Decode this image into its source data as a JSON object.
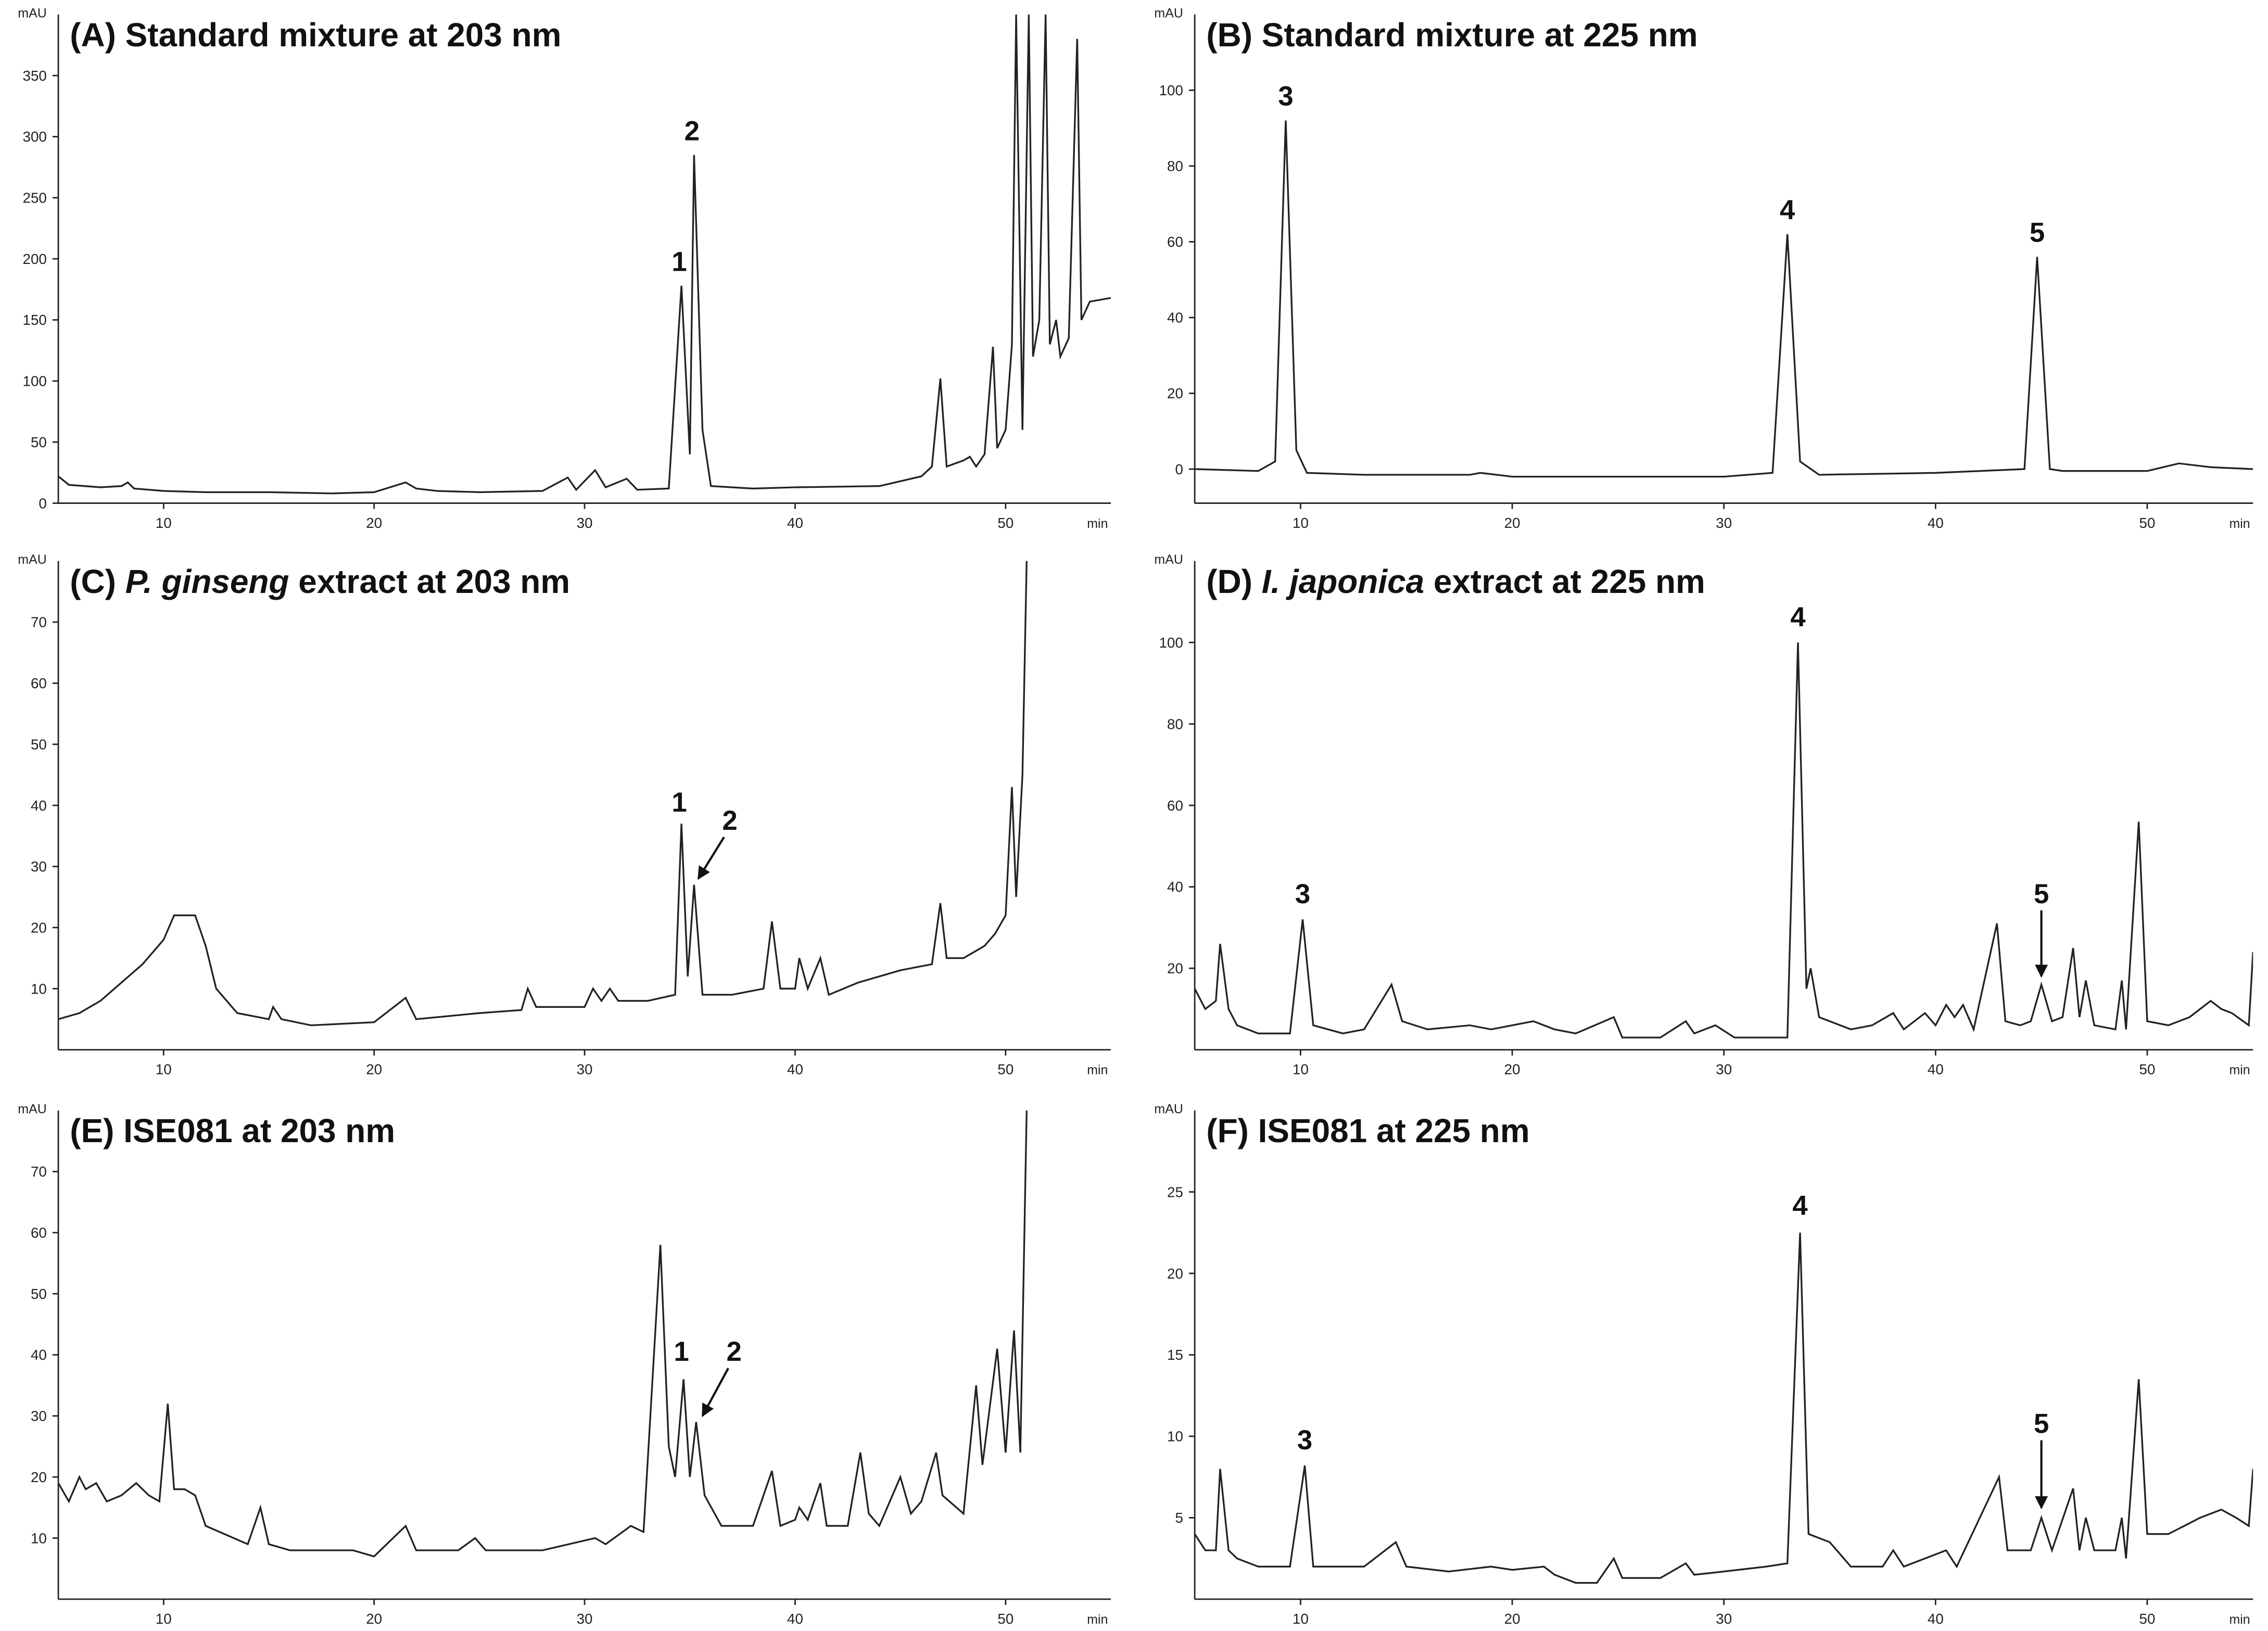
{
  "chart_data": [
    {
      "type": "line",
      "title": [
        {
          "text": "(A) Standard mixture at 203 nm"
        }
      ],
      "xlabel": "min",
      "ylabel": "mAU",
      "color": "#222222",
      "x": [
        5,
        5.5,
        7,
        8,
        8.3,
        8.6,
        10,
        12,
        15,
        18,
        20,
        21.5,
        22,
        23,
        25,
        28,
        29.2,
        29.6,
        30.5,
        31,
        32,
        32.5,
        34,
        34.6,
        35,
        35.2,
        35.6,
        36,
        38,
        40,
        44,
        45,
        46,
        46.5,
        46.9,
        47.2,
        48,
        48.3,
        48.6,
        49,
        49.4,
        49.6,
        50,
        50.3,
        50.5,
        50.8,
        51.1,
        51.3,
        51.6,
        51.9,
        52.1,
        52.4,
        52.6,
        53,
        53.4,
        53.6,
        54,
        55
      ],
      "values": [
        22,
        15,
        13,
        14,
        17,
        12,
        10,
        9,
        9,
        8,
        9,
        17,
        12,
        10,
        9,
        10,
        21,
        11,
        27,
        13,
        20,
        11,
        12,
        178,
        40,
        285,
        60,
        14,
        12,
        13,
        14,
        18,
        22,
        30,
        102,
        30,
        35,
        38,
        30,
        40,
        128,
        45,
        60,
        130,
        400,
        60,
        400,
        120,
        150,
        400,
        130,
        150,
        120,
        135,
        380,
        150,
        165,
        168
      ],
      "xlim": [
        5,
        55
      ],
      "ylim": [
        0,
        400
      ],
      "xticks": [
        10,
        20,
        30,
        40,
        50
      ],
      "yticks": [
        0,
        50,
        100,
        150,
        200,
        250,
        300,
        350
      ],
      "annotations": [
        {
          "text": "1",
          "x": 34.5,
          "y": 190
        },
        {
          "text": "2",
          "x": 35.1,
          "y": 297
        }
      ]
    },
    {
      "type": "line",
      "title": [
        {
          "text": "(B) Standard mixture at 225 nm"
        }
      ],
      "xlabel": "min",
      "ylabel": "mAU",
      "color": "#222222",
      "x": [
        5,
        8,
        8.8,
        9.3,
        9.8,
        10.3,
        13,
        18,
        18.5,
        20,
        25,
        30,
        32.3,
        33,
        33.6,
        34.5,
        40,
        44.2,
        44.8,
        45.4,
        46,
        50,
        51.5,
        53,
        55
      ],
      "values": [
        0,
        -0.5,
        2,
        92,
        5,
        -1,
        -1.5,
        -1.5,
        -1,
        -2,
        -2,
        -2,
        -1,
        62,
        2,
        -1.5,
        -1,
        0,
        56,
        0,
        -0.5,
        -0.5,
        1.5,
        0.5,
        0
      ],
      "xlim": [
        5,
        55
      ],
      "ylim": [
        -9,
        120
      ],
      "xticks": [
        10,
        20,
        30,
        40,
        50
      ],
      "yticks": [
        0,
        20,
        40,
        60,
        80,
        100
      ],
      "annotations": [
        {
          "text": "3",
          "x": 9.3,
          "y": 96
        },
        {
          "text": "4",
          "x": 33,
          "y": 66
        },
        {
          "text": "5",
          "x": 44.8,
          "y": 60
        }
      ]
    },
    {
      "type": "line",
      "title": [
        {
          "text": "(C) "
        },
        {
          "text": "P. ginseng",
          "italic": true
        },
        {
          "text": " extract at 203 nm"
        }
      ],
      "xlabel": "min",
      "ylabel": "mAU",
      "color": "#222222",
      "x": [
        5,
        6,
        7,
        8,
        9,
        10,
        10.5,
        11.5,
        12,
        12.5,
        13.5,
        15,
        15.2,
        15.6,
        17,
        20,
        21.5,
        22,
        25,
        27,
        27.3,
        27.7,
        30,
        30.4,
        30.8,
        31.2,
        31.6,
        33,
        34.3,
        34.6,
        34.9,
        35.2,
        35.6,
        37,
        38.5,
        38.9,
        39.3,
        40,
        40.2,
        40.6,
        41.2,
        41.6,
        43,
        45,
        46.5,
        46.9,
        47.2,
        48,
        49,
        49.5,
        50,
        50.3,
        50.5,
        50.8,
        51
      ],
      "values": [
        5,
        6,
        8,
        11,
        14,
        18,
        22,
        22,
        17,
        10,
        6,
        5,
        7,
        5,
        4,
        4.5,
        8.5,
        5,
        6,
        6.5,
        10,
        7,
        7,
        10,
        8,
        10,
        8,
        8,
        9,
        37,
        12,
        27,
        9,
        9,
        10,
        21,
        10,
        10,
        15,
        10,
        15,
        9,
        11,
        13,
        14,
        24,
        15,
        15,
        17,
        19,
        22,
        43,
        25,
        45,
        80
      ],
      "xlim": [
        5,
        55
      ],
      "ylim": [
        0,
        80
      ],
      "xticks": [
        10,
        20,
        30,
        40,
        50
      ],
      "yticks": [
        10,
        20,
        30,
        40,
        50,
        60,
        70
      ],
      "annotations": [
        {
          "text": "1",
          "x": 34.5,
          "y": 39
        },
        {
          "text": "2",
          "x": 36.9,
          "y": 36,
          "arrow_to": [
            35.4,
            28
          ]
        }
      ]
    },
    {
      "type": "line",
      "title": [
        {
          "text": "(D) "
        },
        {
          "text": "I. japonica",
          "italic": true
        },
        {
          "text": " extract at 225 nm"
        }
      ],
      "xlabel": "min",
      "ylabel": "mAU",
      "color": "#222222",
      "x": [
        5,
        5.5,
        6,
        6.2,
        6.6,
        7,
        8,
        9.5,
        10.1,
        10.6,
        12,
        13,
        14.3,
        14.8,
        16,
        18,
        19,
        21,
        22,
        23,
        24.8,
        25.2,
        27,
        28.2,
        28.6,
        29.6,
        30.5,
        32,
        33,
        33.5,
        33.9,
        34.1,
        34.5,
        36,
        37,
        38,
        38.5,
        39.5,
        40,
        40.5,
        40.9,
        41.3,
        41.8,
        42.9,
        43.3,
        44,
        44.5,
        45,
        45.5,
        46,
        46.5,
        46.8,
        47.1,
        47.5,
        48.5,
        48.8,
        49,
        49.6,
        50,
        51,
        52,
        53,
        53.5,
        54,
        54.8,
        55
      ],
      "values": [
        15,
        10,
        12,
        26,
        10,
        6,
        4,
        4,
        32,
        6,
        4,
        5,
        16,
        7,
        5,
        6,
        5,
        7,
        5,
        4,
        8,
        3,
        3,
        7,
        4,
        6,
        3,
        3,
        3,
        100,
        15,
        20,
        8,
        5,
        6,
        9,
        5,
        9,
        6,
        11,
        8,
        11,
        5,
        31,
        7,
        6,
        7,
        16,
        7,
        8,
        25,
        8,
        17,
        6,
        5,
        17,
        5,
        56,
        7,
        6,
        8,
        12,
        10,
        9,
        6,
        24
      ],
      "xlim": [
        5,
        55
      ],
      "ylim": [
        0,
        120
      ],
      "xticks": [
        10,
        20,
        30,
        40,
        50
      ],
      "yticks": [
        20,
        40,
        60,
        80,
        100
      ],
      "annotations": [
        {
          "text": "3",
          "x": 10.1,
          "y": 36
        },
        {
          "text": "4",
          "x": 33.5,
          "y": 104
        },
        {
          "text": "5",
          "x": 45,
          "y": 36,
          "arrow_to": [
            45,
            18
          ]
        }
      ]
    },
    {
      "type": "line",
      "title": [
        {
          "text": "(E) ISE081 at 203 nm"
        }
      ],
      "xlabel": "min",
      "ylabel": "mAU",
      "color": "#222222",
      "x": [
        5,
        5.5,
        6,
        6.3,
        6.8,
        7.3,
        8,
        8.7,
        9.3,
        9.8,
        10.2,
        10.5,
        11,
        11.5,
        12,
        14,
        14.6,
        15,
        16,
        19,
        20,
        21.5,
        22,
        24,
        24.8,
        25.3,
        28,
        30.5,
        31,
        32.2,
        32.8,
        33.6,
        34,
        34.3,
        34.7,
        35,
        35.3,
        35.7,
        36.5,
        38,
        38.9,
        39.3,
        40,
        40.2,
        40.6,
        41.2,
        41.5,
        42.5,
        43.1,
        43.5,
        44,
        45,
        45.5,
        46,
        46.7,
        47,
        48,
        48.6,
        48.9,
        49.6,
        50,
        50.4,
        50.7,
        51
      ],
      "values": [
        19,
        16,
        20,
        18,
        19,
        16,
        17,
        19,
        17,
        16,
        32,
        18,
        18,
        17,
        12,
        9,
        15,
        9,
        8,
        8,
        7,
        12,
        8,
        8,
        10,
        8,
        8,
        10,
        9,
        12,
        11,
        58,
        25,
        20,
        36,
        20,
        29,
        17,
        12,
        12,
        21,
        12,
        13,
        15,
        13,
        19,
        12,
        12,
        24,
        14,
        12,
        20,
        14,
        16,
        24,
        17,
        14,
        35,
        22,
        41,
        24,
        44,
        24,
        80
      ],
      "xlim": [
        5,
        55
      ],
      "ylim": [
        0,
        80
      ],
      "xticks": [
        10,
        20,
        30,
        40,
        50
      ],
      "yticks": [
        10,
        20,
        30,
        40,
        50,
        60,
        70
      ],
      "annotations": [
        {
          "text": "1",
          "x": 34.6,
          "y": 39
        },
        {
          "text": "2",
          "x": 37.1,
          "y": 39,
          "arrow_to": [
            35.6,
            30
          ]
        }
      ]
    },
    {
      "type": "line",
      "title": [
        {
          "text": "(F) ISE081 at 225 nm"
        }
      ],
      "xlabel": "min",
      "ylabel": "mAU",
      "color": "#222222",
      "x": [
        5,
        5.5,
        6,
        6.2,
        6.6,
        7,
        8,
        9.5,
        10.2,
        10.6,
        12,
        13,
        14.5,
        15,
        17,
        19,
        20,
        21.5,
        22,
        23,
        24,
        24.8,
        25.2,
        27,
        28.2,
        28.6,
        30,
        32,
        33,
        33.6,
        34,
        35,
        36,
        37.5,
        38,
        38.5,
        40.5,
        41,
        43,
        43.4,
        44.5,
        45,
        45.5,
        46.5,
        46.8,
        47.1,
        47.5,
        48.5,
        48.8,
        49,
        49.6,
        50,
        51,
        52.5,
        53.5,
        54.2,
        54.8,
        55
      ],
      "values": [
        4,
        3,
        3,
        8,
        3,
        2.5,
        2,
        2,
        8.2,
        2,
        2,
        2,
        3.5,
        2,
        1.7,
        2,
        1.8,
        2,
        1.5,
        1,
        1,
        2.5,
        1.3,
        1.3,
        2.2,
        1.5,
        1.7,
        2,
        2.2,
        22.5,
        4,
        3.5,
        2,
        2,
        3,
        2,
        3,
        2,
        7.5,
        3,
        3,
        5,
        3,
        6.8,
        3,
        5,
        3,
        3,
        5,
        2.5,
        13.5,
        4,
        4,
        5,
        5.5,
        5,
        4.5,
        8
      ],
      "xlim": [
        5,
        55
      ],
      "ylim": [
        0,
        30
      ],
      "xticks": [
        10,
        20,
        30,
        40,
        50
      ],
      "yticks": [
        5,
        10,
        15,
        20,
        25
      ],
      "annotations": [
        {
          "text": "3",
          "x": 10.2,
          "y": 9.2
        },
        {
          "text": "4",
          "x": 33.6,
          "y": 23.6
        },
        {
          "text": "5",
          "x": 45,
          "y": 10.2,
          "arrow_to": [
            45,
            5.6
          ]
        }
      ]
    }
  ]
}
